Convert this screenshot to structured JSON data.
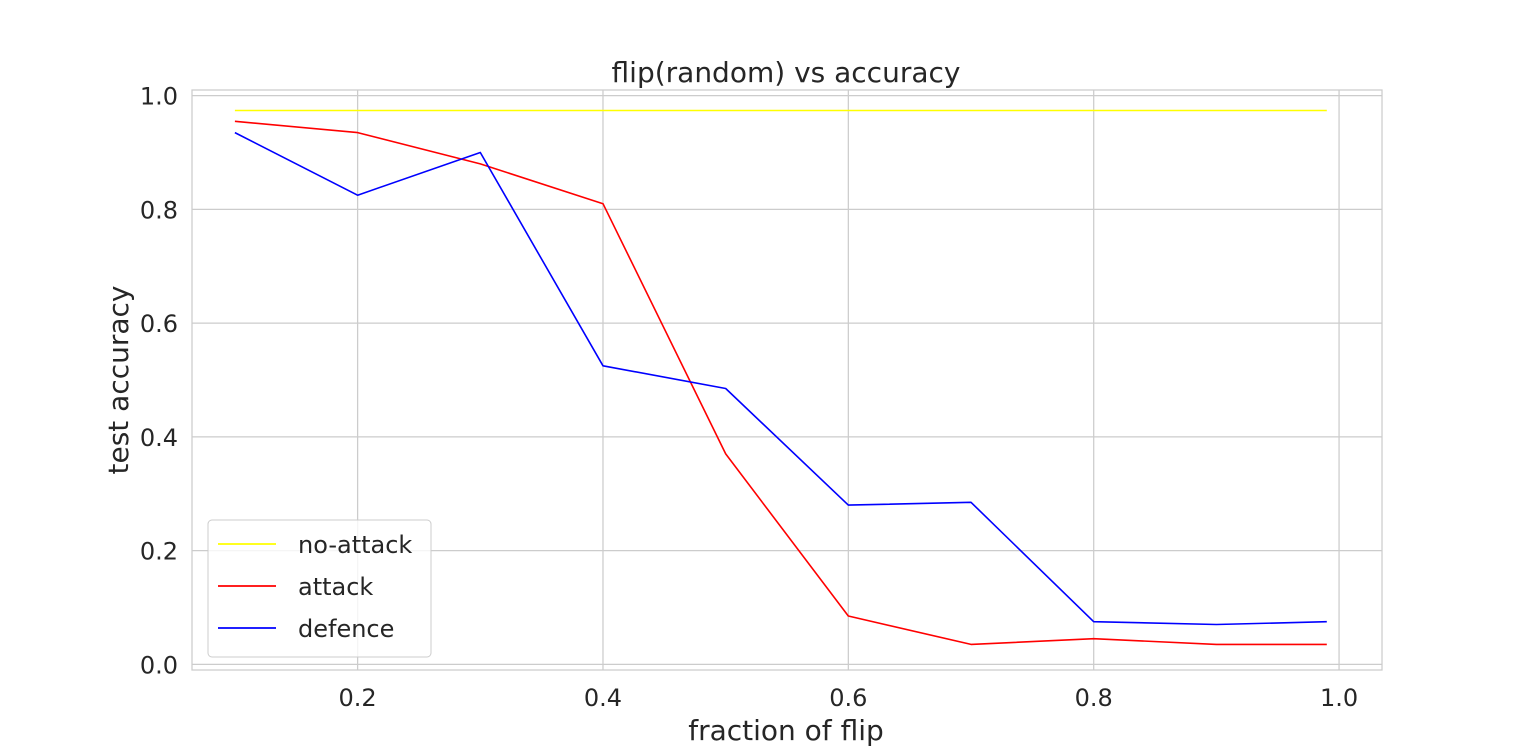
{
  "chart_data": {
    "type": "line",
    "title": "flip(random) vs accuracy",
    "xlabel": "fraction of flip",
    "ylabel": "test accuracy",
    "xlim": [
      0.065,
      1.035
    ],
    "ylim": [
      -0.01,
      1.01
    ],
    "xticks": [
      0.2,
      0.4,
      0.6,
      0.8,
      1.0
    ],
    "xtick_labels": [
      "0.2",
      "0.4",
      "0.6",
      "0.8",
      "1.0"
    ],
    "yticks": [
      0.0,
      0.2,
      0.4,
      0.6,
      0.8,
      1.0
    ],
    "ytick_labels": [
      "0.0",
      "0.2",
      "0.4",
      "0.6",
      "0.8",
      "1.0"
    ],
    "grid": true,
    "legend_position": "lower-left",
    "x": [
      0.1,
      0.2,
      0.3,
      0.4,
      0.5,
      0.6,
      0.7,
      0.8,
      0.9,
      0.99
    ],
    "series": [
      {
        "name": "no-attack",
        "color": "#ffff00",
        "values": [
          0.974,
          0.974,
          0.974,
          0.974,
          0.974,
          0.974,
          0.974,
          0.974,
          0.974,
          0.974
        ]
      },
      {
        "name": "attack",
        "color": "#ff0000",
        "values": [
          0.955,
          0.935,
          0.88,
          0.81,
          0.37,
          0.085,
          0.035,
          0.045,
          0.035,
          0.035
        ]
      },
      {
        "name": "defence",
        "color": "#0000ff",
        "values": [
          0.935,
          0.825,
          0.9,
          0.525,
          0.485,
          0.28,
          0.285,
          0.075,
          0.07,
          0.075
        ]
      }
    ]
  }
}
